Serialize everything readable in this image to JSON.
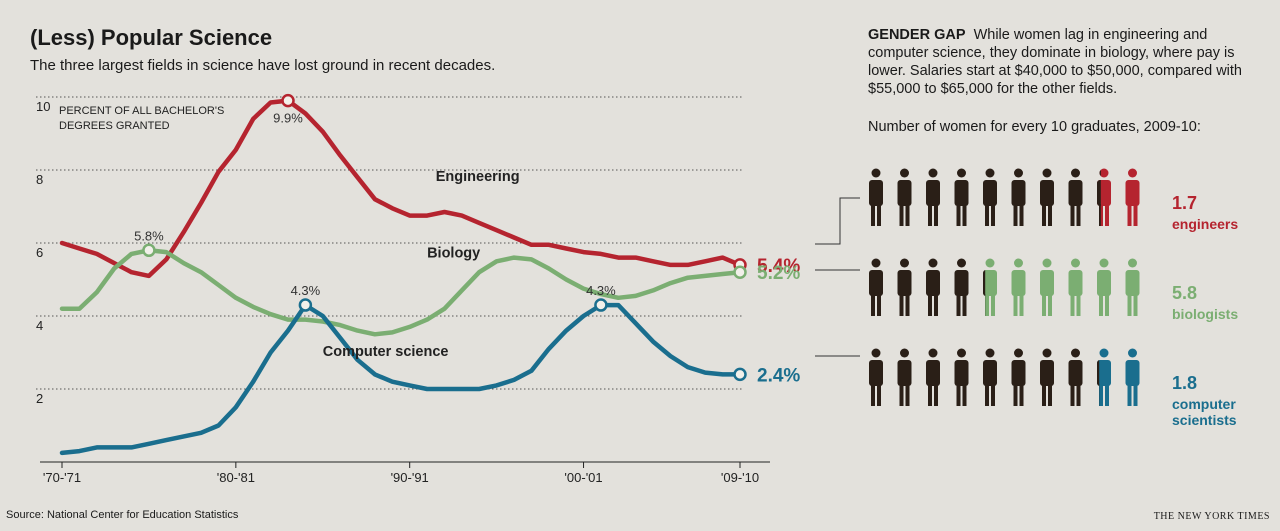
{
  "header": {
    "title": "(Less) Popular Science",
    "subtitle": "The three largest fields in science have lost ground in recent decades."
  },
  "chart_data": {
    "type": "line",
    "ylabel": "PERCENT OF ALL BACHELOR'S DEGREES GRANTED",
    "ylabel_lines": [
      "PERCENT OF ALL BACHELOR'S",
      "DEGREES GRANTED"
    ],
    "ylim": [
      0,
      10.5
    ],
    "yticks": [
      2,
      4,
      6,
      8,
      10
    ],
    "xticks": [
      {
        "year": 1970,
        "label": "'70-'71"
      },
      {
        "year": 1980,
        "label": "'80-'81"
      },
      {
        "year": 1990,
        "label": "'90-'91"
      },
      {
        "year": 2000,
        "label": "'00-'01"
      },
      {
        "year": 2009,
        "label": "'09-'10"
      }
    ],
    "xlim": [
      1970,
      2009
    ],
    "grid": true,
    "series": [
      {
        "name": "Engineering",
        "color": "#b5242f",
        "x": [
          1970,
          1971,
          1972,
          1973,
          1974,
          1975,
          1976,
          1977,
          1978,
          1979,
          1980,
          1981,
          1982,
          1983,
          1984,
          1985,
          1986,
          1987,
          1988,
          1989,
          1990,
          1991,
          1992,
          1993,
          1994,
          1995,
          1996,
          1997,
          1998,
          1999,
          2000,
          2001,
          2002,
          2003,
          2004,
          2005,
          2006,
          2007,
          2008,
          2009
        ],
        "values": [
          6.0,
          5.85,
          5.7,
          5.45,
          5.2,
          5.1,
          5.55,
          6.3,
          7.1,
          7.95,
          8.55,
          9.4,
          9.85,
          9.9,
          9.55,
          9.05,
          8.4,
          7.8,
          7.2,
          6.95,
          6.75,
          6.75,
          6.85,
          6.75,
          6.55,
          6.35,
          6.15,
          5.95,
          5.95,
          5.85,
          5.75,
          5.7,
          5.6,
          5.6,
          5.5,
          5.4,
          5.4,
          5.5,
          5.6,
          5.4
        ],
        "end_label": "5.4%",
        "peak": {
          "year": 1983,
          "value": 9.9,
          "label": "9.9%"
        },
        "name_label_x": 1991.5,
        "name_label_y": 7.7
      },
      {
        "name": "Biology",
        "color": "#7bae72",
        "x": [
          1970,
          1971,
          1972,
          1973,
          1974,
          1975,
          1976,
          1977,
          1978,
          1979,
          1980,
          1981,
          1982,
          1983,
          1984,
          1985,
          1986,
          1987,
          1988,
          1989,
          1990,
          1991,
          1992,
          1993,
          1994,
          1995,
          1996,
          1997,
          1998,
          1999,
          2000,
          2001,
          2002,
          2003,
          2004,
          2005,
          2006,
          2007,
          2008,
          2009
        ],
        "values": [
          4.2,
          4.2,
          4.65,
          5.3,
          5.7,
          5.8,
          5.75,
          5.45,
          5.2,
          4.85,
          4.5,
          4.25,
          4.05,
          3.9,
          3.9,
          3.85,
          3.75,
          3.6,
          3.5,
          3.55,
          3.7,
          3.9,
          4.2,
          4.7,
          5.2,
          5.5,
          5.6,
          5.55,
          5.3,
          5.0,
          4.75,
          4.6,
          4.5,
          4.55,
          4.7,
          4.9,
          5.05,
          5.1,
          5.15,
          5.2
        ],
        "end_label": "5.2%",
        "peak": {
          "year": 1975,
          "value": 5.8,
          "label": "5.8%"
        },
        "name_label_x": 1991,
        "name_label_y": 5.6
      },
      {
        "name": "Computer science",
        "color": "#1a6e8e",
        "x": [
          1970,
          1971,
          1972,
          1973,
          1974,
          1975,
          1976,
          1977,
          1978,
          1979,
          1980,
          1981,
          1982,
          1983,
          1984,
          1985,
          1986,
          1987,
          1988,
          1989,
          1990,
          1991,
          1992,
          1993,
          1994,
          1995,
          1996,
          1997,
          1998,
          1999,
          2000,
          2001,
          2002,
          2003,
          2004,
          2005,
          2006,
          2007,
          2008,
          2009
        ],
        "values": [
          0.25,
          0.3,
          0.4,
          0.4,
          0.4,
          0.5,
          0.6,
          0.7,
          0.8,
          1.0,
          1.5,
          2.2,
          3.0,
          3.6,
          4.3,
          4.0,
          3.4,
          2.8,
          2.4,
          2.2,
          2.1,
          2.0,
          2.0,
          2.0,
          2.0,
          2.1,
          2.25,
          2.5,
          3.1,
          3.6,
          4.0,
          4.3,
          4.3,
          3.8,
          3.3,
          2.9,
          2.6,
          2.45,
          2.4,
          2.4
        ],
        "end_label": "2.4%",
        "peaks": [
          {
            "year": 1984,
            "value": 4.3,
            "label": "4.3%"
          },
          {
            "year": 2001,
            "value": 4.3,
            "label": "4.3%"
          }
        ],
        "name_label_x": 1985,
        "name_label_y": 2.9
      }
    ]
  },
  "gender_gap": {
    "kicker": "GENDER GAP",
    "text": "While women lag in engineering and computer science, they dominate in biology, where pay is lower. Salaries start at $40,000 to $50,000, compared with $55,000 to $65,000 for the other fields.",
    "women_header": "Number of women for every 10 graduates, 2009-10:",
    "men_color": "#2a1f17",
    "rows": [
      {
        "field": "Engineering",
        "women": 1.7,
        "value_label": "1.7",
        "label_lines": [
          "engineers"
        ],
        "color": "#b5242f"
      },
      {
        "field": "Biology",
        "women": 5.8,
        "value_label": "5.8",
        "label_lines": [
          "biologists"
        ],
        "color": "#7bae72"
      },
      {
        "field": "Computer science",
        "women": 1.8,
        "value_label": "1.8",
        "label_lines": [
          "computer",
          "scientists"
        ],
        "color": "#1a6e8e"
      }
    ]
  },
  "footer": {
    "source": "Source: National Center for Education Statistics",
    "credit": "THE NEW YORK TIMES"
  }
}
